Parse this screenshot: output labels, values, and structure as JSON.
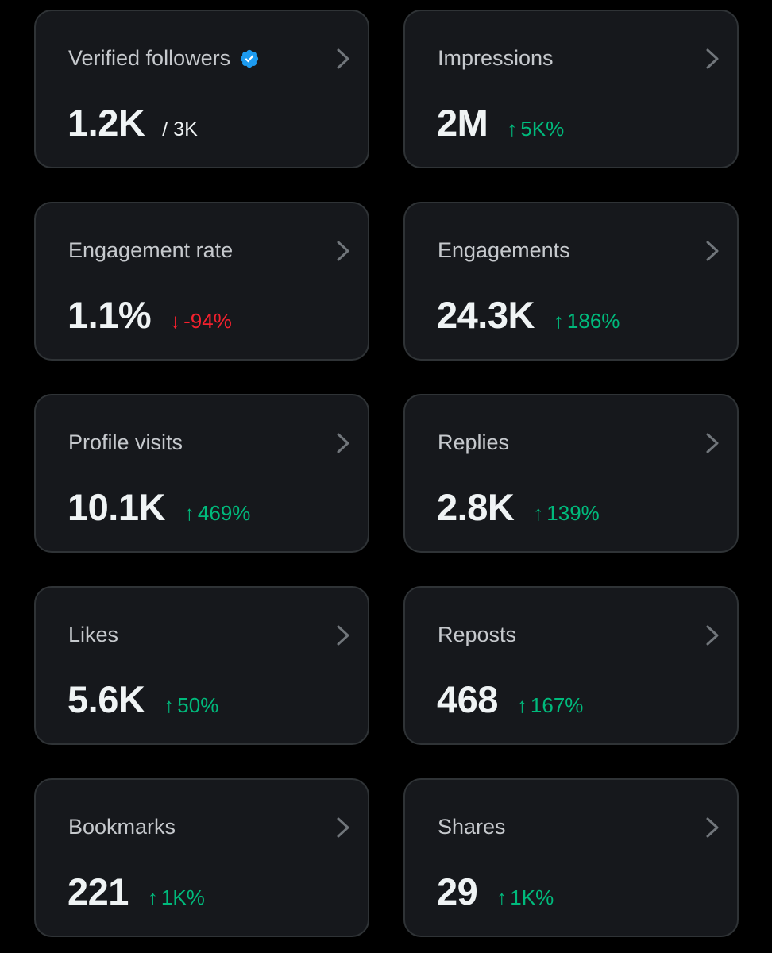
{
  "colors": {
    "background": "#000000",
    "card": "#16181c",
    "card_border": "#2f3336",
    "label": "#c6c9cd",
    "value": "#eff3f4",
    "positive": "#00ba7c",
    "negative": "#f4212e",
    "verified": "#1d9bf0"
  },
  "cards": [
    {
      "title": "Verified followers",
      "value": "1.2K",
      "sub": "/ 3K",
      "icon": "verified-badge-icon"
    },
    {
      "title": "Impressions",
      "value": "2M",
      "change": {
        "arrow": "↑",
        "text": "5K%",
        "direction": "up"
      }
    },
    {
      "title": "Engagement rate",
      "value": "1.1%",
      "change": {
        "arrow": "↓",
        "text": "-94%",
        "direction": "down"
      }
    },
    {
      "title": "Engagements",
      "value": "24.3K",
      "change": {
        "arrow": "↑",
        "text": "186%",
        "direction": "up"
      }
    },
    {
      "title": "Profile visits",
      "value": "10.1K",
      "change": {
        "arrow": "↑",
        "text": "469%",
        "direction": "up"
      }
    },
    {
      "title": "Replies",
      "value": "2.8K",
      "change": {
        "arrow": "↑",
        "text": "139%",
        "direction": "up"
      }
    },
    {
      "title": "Likes",
      "value": "5.6K",
      "change": {
        "arrow": "↑",
        "text": "50%",
        "direction": "up"
      }
    },
    {
      "title": "Reposts",
      "value": "468",
      "change": {
        "arrow": "↑",
        "text": "167%",
        "direction": "up"
      }
    },
    {
      "title": "Bookmarks",
      "value": "221",
      "change": {
        "arrow": "↑",
        "text": "1K%",
        "direction": "up"
      }
    },
    {
      "title": "Shares",
      "value": "29",
      "change": {
        "arrow": "↑",
        "text": "1K%",
        "direction": "up"
      }
    }
  ]
}
